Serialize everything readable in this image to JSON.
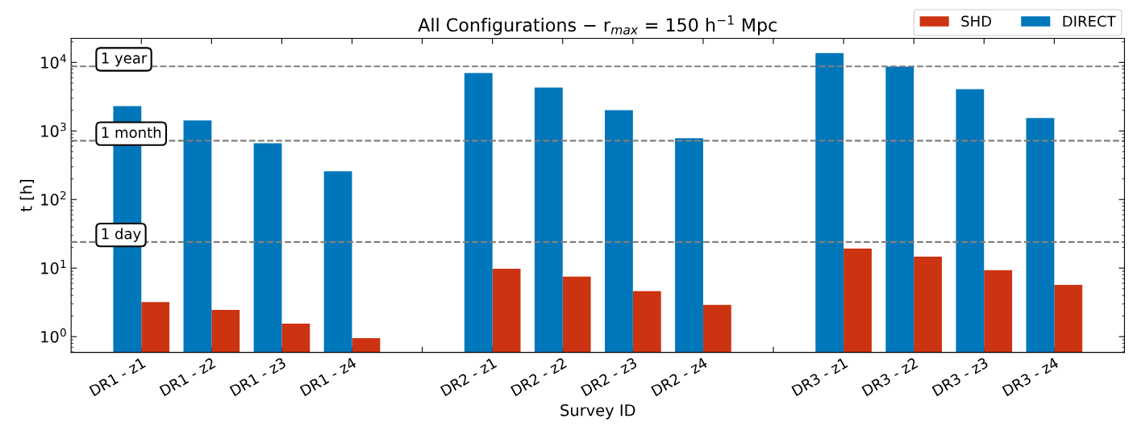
{
  "chart_data": {
    "type": "bar",
    "title": "All Configurations − r$_{max}$ = 150 h$^{−1}$ Mpc",
    "xlabel": "Survey ID",
    "ylabel": "t [h]",
    "categories": [
      "DR1 - z1",
      "DR1 - z2",
      "DR1 - z3",
      "DR1 - z4",
      null,
      "DR2 - z1",
      "DR2 - z2",
      "DR2 - z3",
      "DR2 - z4",
      null,
      "DR3 - z1",
      "DR3 - z2",
      "DR3 - z3",
      "DR3 - z4"
    ],
    "series": [
      {
        "name": "SHD",
        "color": "#cc3311",
        "values": [
          3.2,
          2.46,
          1.55,
          0.95,
          null,
          9.8,
          7.5,
          4.6,
          2.9,
          null,
          19.2,
          14.7,
          9.3,
          5.7
        ]
      },
      {
        "name": "DIRECT",
        "color": "#0077bb",
        "values": [
          2300,
          1420,
          664,
          258,
          null,
          6980,
          4290,
          2010,
          782,
          null,
          13700,
          8670,
          4070,
          1540
        ]
      }
    ],
    "log": "y",
    "ylim": [
      0.59,
      22500
    ],
    "yticks": [
      {
        "value": 1,
        "label": "10$^{0}$"
      },
      {
        "value": 10,
        "label": "10$^{1}$"
      },
      {
        "value": 100,
        "label": "10$^{2}$"
      },
      {
        "value": 1000,
        "label": "10$^{3}$"
      },
      {
        "value": 10000,
        "label": "10$^{4}$"
      }
    ],
    "ref_lines": [
      {
        "axis": "y",
        "value": 8760,
        "label": "1 year",
        "color": "#808080",
        "line_style": "dashed"
      },
      {
        "axis": "y",
        "value": 720,
        "label": "1 month",
        "color": "#808080",
        "line_style": "dashed"
      },
      {
        "axis": "y",
        "value": 24,
        "label": "1 day",
        "color": "#808080",
        "line_style": "dashed"
      }
    ],
    "legend": "top right",
    "grid": false
  }
}
